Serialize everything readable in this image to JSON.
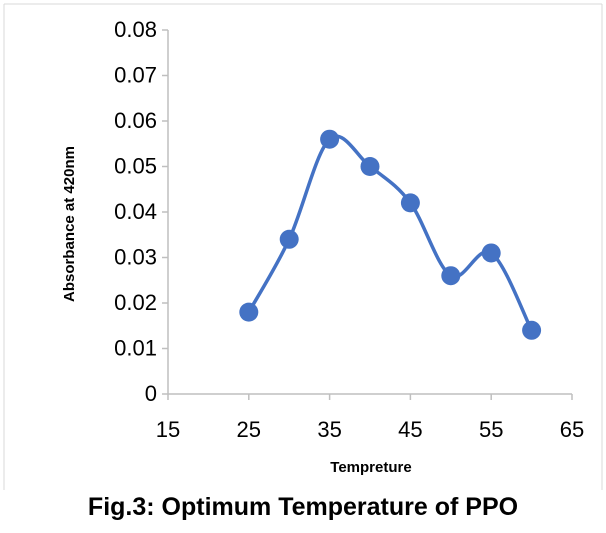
{
  "figure": {
    "caption": "Fig.3: Optimum Temperature of PPO"
  },
  "chart_data": {
    "type": "line",
    "smooth": true,
    "markers": true,
    "title": "",
    "xlabel": "Tempreture",
    "ylabel": "Absorbance at 420nm",
    "xlim": [
      15,
      65
    ],
    "ylim": [
      0,
      0.08
    ],
    "xticks": [
      15,
      25,
      35,
      45,
      55,
      65
    ],
    "yticks": [
      0,
      0.01,
      0.02,
      0.03,
      0.04,
      0.05,
      0.06,
      0.07,
      0.08
    ],
    "ytick_labels": [
      "0",
      "0.01",
      "0.02",
      "0.03",
      "0.04",
      "0.05",
      "0.06",
      "0.07",
      "0.08"
    ],
    "grid": false,
    "color": "#4472C4",
    "series": [
      {
        "x": [
          25,
          30,
          35,
          40,
          45,
          50,
          55,
          60
        ],
        "values": [
          0.018,
          0.034,
          0.056,
          0.05,
          0.042,
          0.026,
          0.031,
          0.014
        ]
      }
    ]
  }
}
